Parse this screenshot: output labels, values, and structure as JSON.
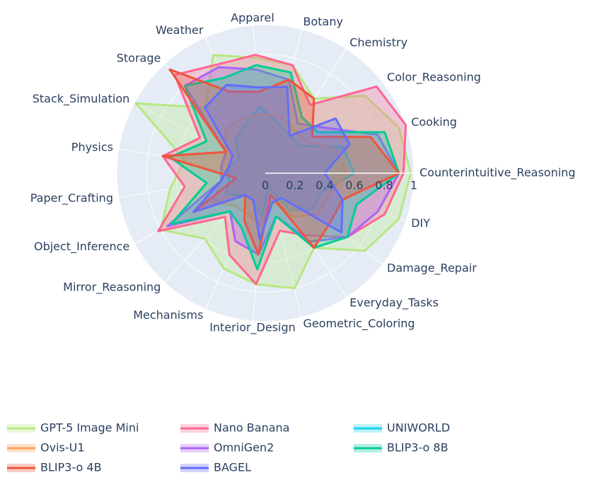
{
  "chart_data": {
    "type": "radar",
    "categories": [
      "Apparel",
      "Botany",
      "Chemistry",
      "Color_Reasoning",
      "Cooking",
      "Counterintuitive_Reasoning",
      "DIY",
      "Damage_Repair",
      "Everyday_Tasks",
      "Geometric_Coloring",
      "Interior_Design",
      "Mechanisms",
      "Mirror_Reasoning",
      "Object_Inference",
      "Paper_Crafting",
      "Physics",
      "Stack_Simulation",
      "Storage",
      "Weather"
    ],
    "series": [
      {
        "name": "GPT-5 Image Mini",
        "color": "#b6e880",
        "values": [
          0.78,
          0.75,
          0.6,
          0.85,
          0.95,
          0.98,
          0.95,
          0.85,
          0.6,
          0.8,
          0.75,
          0.7,
          0.6,
          0.8,
          0.65,
          0.55,
          0.99,
          0.6,
          0.87
        ]
      },
      {
        "name": "Nano Banana",
        "color": "#ff6692",
        "values": [
          0.8,
          0.75,
          0.55,
          0.95,
          1.0,
          0.93,
          0.85,
          0.7,
          0.5,
          0.4,
          0.75,
          0.6,
          0.4,
          0.82,
          0.55,
          0.7,
          0.5,
          0.9,
          0.8
        ]
      },
      {
        "name": "UNIWORLD",
        "color": "#19d3f3",
        "values": [
          0.45,
          0.35,
          0.3,
          0.3,
          0.55,
          0.6,
          0.4,
          0.4,
          0.3,
          0.1,
          0.3,
          0.2,
          0.2,
          0.3,
          0.25,
          0.25,
          0.2,
          0.3,
          0.35
        ]
      },
      {
        "name": "Ovis-U1",
        "color": "#ffa15a",
        "values": [
          0.4,
          0.4,
          0.35,
          0.35,
          0.5,
          0.55,
          0.45,
          0.45,
          0.35,
          0.2,
          0.35,
          0.3,
          0.3,
          0.4,
          0.3,
          0.3,
          0.3,
          0.4,
          0.4
        ]
      },
      {
        "name": "OmniGen2",
        "color": "#ab63fa",
        "values": [
          0.7,
          0.65,
          0.4,
          0.5,
          0.8,
          0.9,
          0.8,
          0.7,
          0.55,
          0.3,
          0.55,
          0.5,
          0.35,
          0.75,
          0.3,
          0.3,
          0.3,
          0.8,
          0.78
        ]
      },
      {
        "name": "BLIP3-o 8B",
        "color": "#00cc96",
        "values": [
          0.73,
          0.7,
          0.45,
          0.45,
          0.85,
          0.9,
          0.65,
          0.7,
          0.6,
          0.3,
          0.65,
          0.4,
          0.35,
          0.72,
          0.4,
          0.65,
          0.45,
          0.8,
          0.7
        ]
      },
      {
        "name": "BLIP3-o 4B",
        "color": "#ef553b",
        "values": [
          0.55,
          0.65,
          0.6,
          0.4,
          0.75,
          0.9,
          0.55,
          0.55,
          0.6,
          0.15,
          0.55,
          0.35,
          0.2,
          0.55,
          0.2,
          0.7,
          0.3,
          0.95,
          0.6
        ]
      },
      {
        "name": "BAGEL",
        "color": "#636efa",
        "values": [
          0.58,
          0.6,
          0.3,
          0.6,
          0.6,
          0.4,
          0.55,
          0.65,
          0.2,
          0.2,
          0.45,
          0.2,
          0.2,
          0.55,
          0.3,
          0.25,
          0.25,
          0.6,
          0.65
        ]
      }
    ],
    "rlim": [
      0,
      1
    ],
    "rticks": [
      0,
      0.2,
      0.4,
      0.6,
      0.8,
      1
    ],
    "grid": true,
    "legend": "bottom"
  }
}
